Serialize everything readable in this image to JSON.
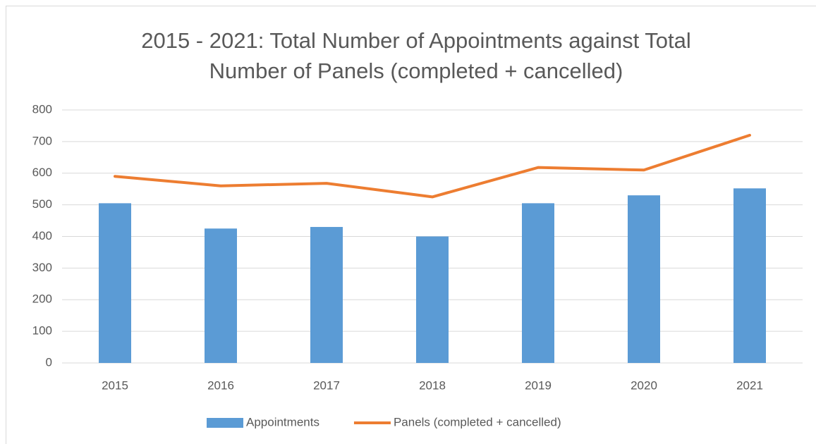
{
  "chart_data": {
    "type": "bar",
    "title": "2015 - 2021: Total Number of Appointments against Total Number of Panels (completed + cancelled)",
    "categories": [
      "2015",
      "2016",
      "2017",
      "2018",
      "2019",
      "2020",
      "2021"
    ],
    "series": [
      {
        "name": "Appointments",
        "type": "bar",
        "color": "#5b9bd5",
        "values": [
          505,
          425,
          430,
          400,
          505,
          530,
          552
        ]
      },
      {
        "name": "Panels (completed + cancelled)",
        "type": "line",
        "color": "#ed7d31",
        "values": [
          590,
          560,
          568,
          525,
          618,
          610,
          720
        ]
      }
    ],
    "ylim": [
      0,
      800
    ],
    "yticks": [
      0,
      100,
      200,
      300,
      400,
      500,
      600,
      700,
      800
    ],
    "grid": true,
    "legend": "bottom"
  }
}
